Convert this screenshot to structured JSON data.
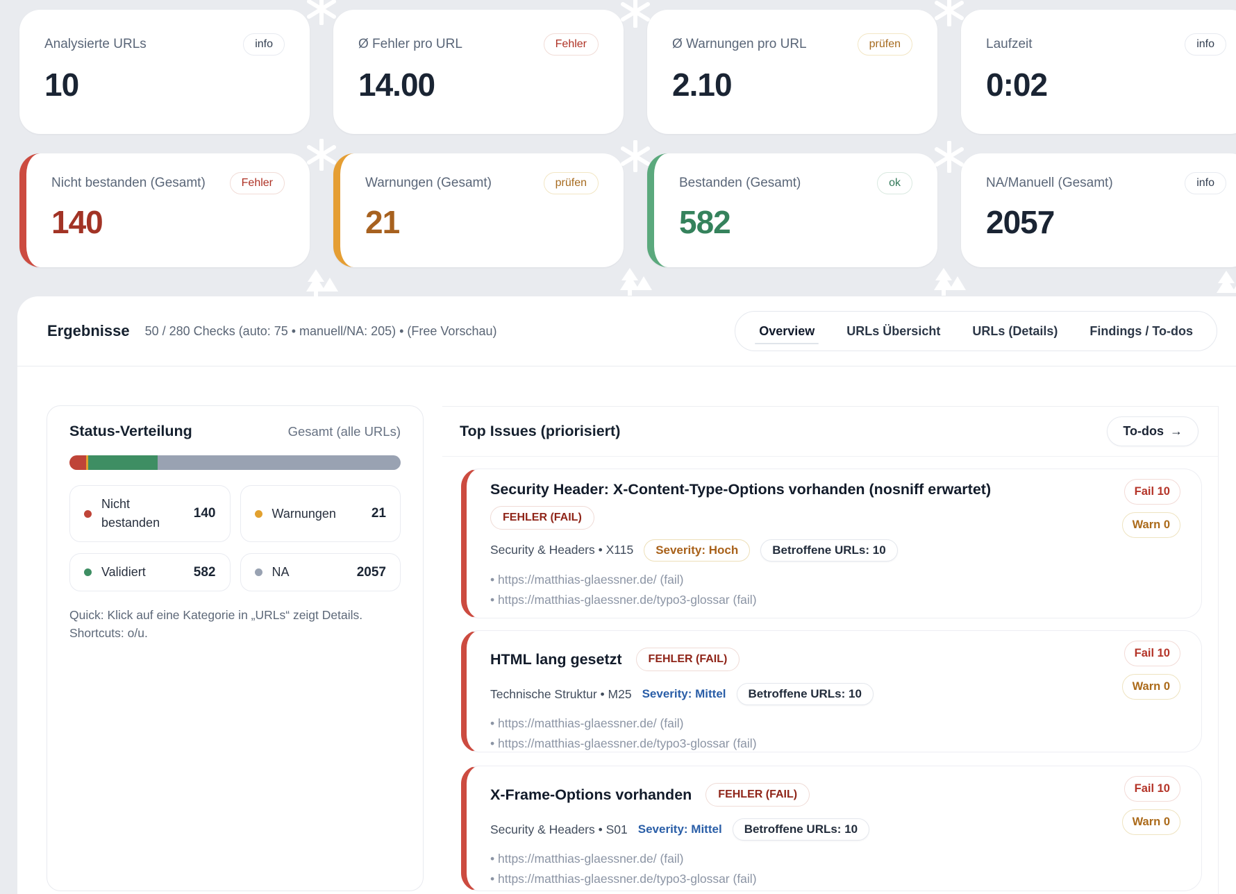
{
  "colors": {
    "page_background": "#e9ebef",
    "fail_red": "#b43428",
    "fail_value_red": "#a23325",
    "warn_orange": "#ab6a1a",
    "warn_value_orange": "#a7611f",
    "ok_green": "#35825c",
    "na_gray": "#99a2b2",
    "severity_blue": "#2a5ea7",
    "accent_red": "#cc4b40",
    "accent_orange": "#e59e33",
    "accent_green": "#5ba97d"
  },
  "decor_icons": [
    "snowflake-icon",
    "tree-icon"
  ],
  "kpi_cards": [
    {
      "label": "Analysierte URLs",
      "badge": "info",
      "value": "10"
    },
    {
      "label": "Ø Fehler pro URL",
      "badge": "Fehler",
      "value": "14.00"
    },
    {
      "label": "Ø Warnungen pro URL",
      "badge": "prüfen",
      "value": "2.10"
    },
    {
      "label": "Laufzeit",
      "badge": "info",
      "value": "0:02"
    },
    {
      "label": "Nicht bestanden (Gesamt)",
      "badge": "Fehler",
      "value": "140"
    },
    {
      "label": "Warnungen (Gesamt)",
      "badge": "prüfen",
      "value": "21"
    },
    {
      "label": "Bestanden (Gesamt)",
      "badge": "ok",
      "value": "582"
    },
    {
      "label": "NA/Manuell (Gesamt)",
      "badge": "info",
      "value": "2057"
    }
  ],
  "results": {
    "title": "Ergebnisse",
    "subtitle": "50 / 280 Checks (auto: 75 • manuell/NA: 205) • (Free Vorschau)",
    "active_tab": "Overview",
    "tabs": [
      {
        "label": "Overview"
      },
      {
        "label": "URLs Übersicht"
      },
      {
        "label": "URLs (Details)"
      },
      {
        "label": "Findings / To-dos"
      }
    ]
  },
  "status_panel": {
    "title": "Status-Verteilung",
    "scope_label": "Gesamt (alle URLs)",
    "bar": {
      "segments": [
        {
          "name": "Nicht bestanden",
          "value": 140,
          "color": "#bf4438"
        },
        {
          "name": "Warnungen",
          "value": 21,
          "color": "#e2a12f"
        },
        {
          "name": "Validiert",
          "value": 582,
          "color": "#3e8e63"
        },
        {
          "name": "NA",
          "value": 2057,
          "color": "#99a2b2"
        }
      ]
    },
    "legend": [
      {
        "label": "Nicht bestanden",
        "value": "140",
        "color": "#bf4438"
      },
      {
        "label": "Warnungen",
        "value": "21",
        "color": "#e2a12f"
      },
      {
        "label": "Validiert",
        "value": "582",
        "color": "#3e8e63"
      },
      {
        "label": "NA",
        "value": "2057",
        "color": "#99a2b2"
      }
    ],
    "hint": "Quick: Klick auf eine Kategorie in „URLs“ zeigt Details. Shortcuts: o/u."
  },
  "top_issues": {
    "title": "Top Issues (priorisiert)",
    "todos_label": "To-dos",
    "todos_arrow": "→",
    "issues": [
      {
        "title": "Security Header: X-Content-Type-Options vorhanden (nosniff erwartet)",
        "status_badge": "FEHLER (FAIL)",
        "category": "Security & Headers • X115",
        "severity": "Severity: Hoch",
        "affected": "Betroffene URLs: 10",
        "urls": [
          "• https://matthias-glaessner.de/ (fail)",
          "• https://matthias-glaessner.de/typo3-glossar (fail)"
        ],
        "fail_badge": "Fail 10",
        "warn_badge": "Warn 0"
      },
      {
        "title": "HTML lang gesetzt",
        "status_badge": "FEHLER (FAIL)",
        "category": "Technische Struktur • M25",
        "severity": "Severity: Mittel",
        "affected": "Betroffene URLs: 10",
        "urls": [
          "• https://matthias-glaessner.de/ (fail)",
          "• https://matthias-glaessner.de/typo3-glossar (fail)"
        ],
        "fail_badge": "Fail 10",
        "warn_badge": "Warn 0"
      },
      {
        "title": "X-Frame-Options vorhanden",
        "status_badge": "FEHLER (FAIL)",
        "category": "Security & Headers • S01",
        "severity": "Severity: Mittel",
        "affected": "Betroffene URLs: 10",
        "urls": [
          "• https://matthias-glaessner.de/ (fail)",
          "• https://matthias-glaessner.de/typo3-glossar (fail)"
        ],
        "fail_badge": "Fail 10",
        "warn_badge": "Warn 0"
      }
    ]
  }
}
